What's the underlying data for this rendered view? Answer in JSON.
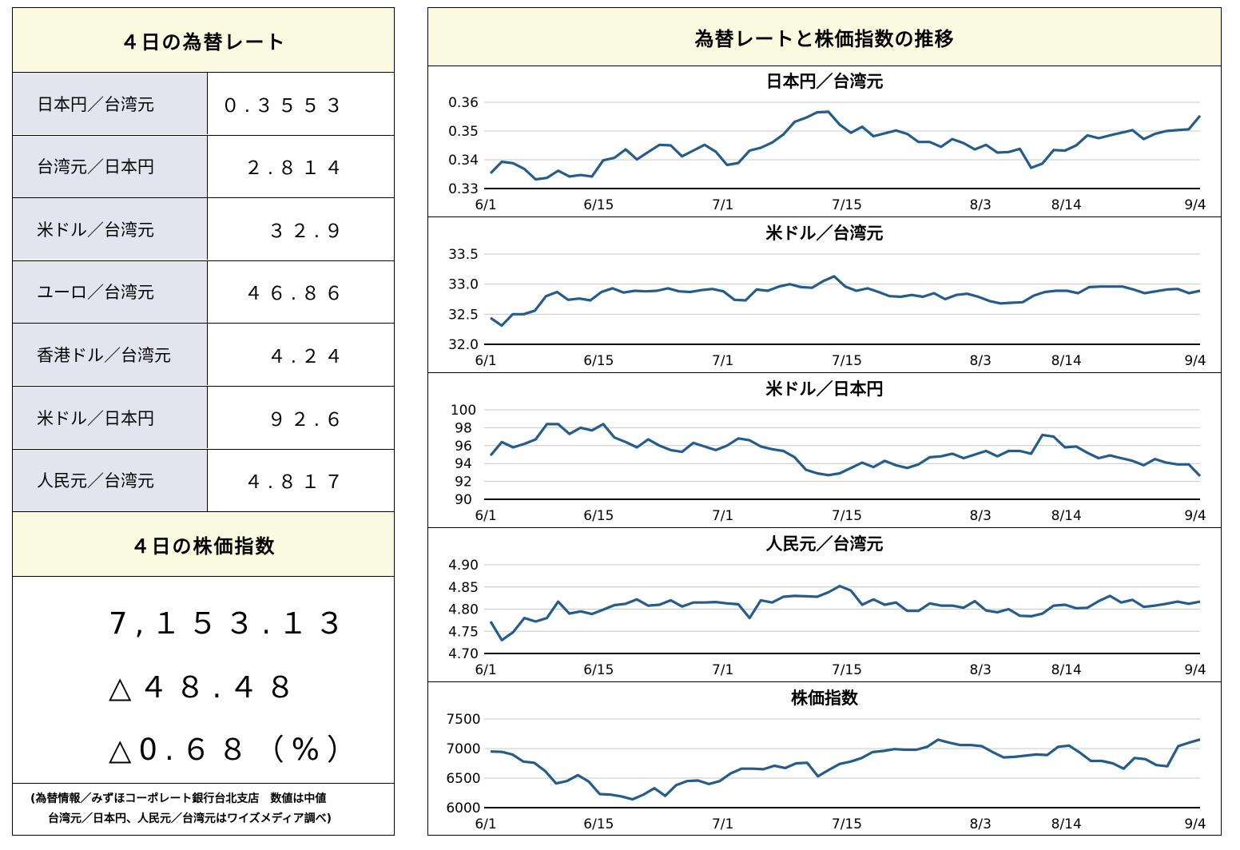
{
  "left": {
    "rates_title": "４日の為替レート",
    "rates": [
      {
        "name": "日本円／台湾元",
        "value": "０.３５５３"
      },
      {
        "name": "台湾元／日本円",
        "value": "２.８１４"
      },
      {
        "name": "米ドル／台湾元",
        "value": "３２.９"
      },
      {
        "name": "ユーロ／台湾元",
        "value": "４６.８６"
      },
      {
        "name": "香港ドル／台湾元",
        "value": "４.２４"
      },
      {
        "name": "米ドル／日本円",
        "value": "９２.６"
      },
      {
        "name": "人民元／台湾元",
        "value": "４.８１７"
      }
    ],
    "stock_title": "４日の株価指数",
    "stock_value": "7,１５３.１３",
    "stock_change": "△４８.４８",
    "stock_change_pct": "△0.６８（%）",
    "note_line1": "(為替情報／みずほコーポレート銀行台北支店　数値は中値",
    "note_line2": "台湾元／日本円、人民元／台湾元はワイズメディア調べ)"
  },
  "right": {
    "title": "為替レートと株価指数の推移"
  },
  "colors": {
    "line": "#245c8c",
    "header_bg": "#fafae0",
    "name_bg": "#e4e4ef"
  },
  "chart_data": [
    {
      "type": "line",
      "title": "日本円／台湾元",
      "xlabels": [
        "6/1",
        "6/15",
        "7/1",
        "7/15",
        "8/3",
        "8/14",
        "9/4"
      ],
      "xlabel_pos": [
        0,
        12,
        25,
        38,
        52,
        61,
        75
      ],
      "ylim": [
        0.33,
        0.36
      ],
      "yticks": [
        "0.36",
        "0.35",
        "0.34",
        "0.33"
      ],
      "values": [
        0.3353,
        0.3393,
        0.3388,
        0.3368,
        0.3332,
        0.3337,
        0.3362,
        0.3342,
        0.3347,
        0.3342,
        0.3398,
        0.3407,
        0.3436,
        0.3401,
        0.3427,
        0.3452,
        0.345,
        0.3412,
        0.3432,
        0.3452,
        0.3428,
        0.3382,
        0.3389,
        0.3432,
        0.3442,
        0.346,
        0.3488,
        0.3532,
        0.3546,
        0.3565,
        0.3567,
        0.3522,
        0.3494,
        0.3515,
        0.3482,
        0.3492,
        0.3502,
        0.349,
        0.3462,
        0.3462,
        0.3445,
        0.3472,
        0.3458,
        0.3436,
        0.3452,
        0.3425,
        0.3427,
        0.3438,
        0.3372,
        0.3387,
        0.3434,
        0.3432,
        0.345,
        0.3485,
        0.3475,
        0.3485,
        0.3494,
        0.3503,
        0.3472,
        0.349,
        0.35,
        0.3503,
        0.3506,
        0.3553
      ]
    },
    {
      "type": "line",
      "title": "米ドル／台湾元",
      "xlabels": [
        "6/1",
        "6/15",
        "7/1",
        "7/15",
        "8/3",
        "8/14",
        "9/4"
      ],
      "xlabel_pos": [
        0,
        12,
        25,
        38,
        52,
        61,
        75
      ],
      "ylim": [
        32.0,
        33.5
      ],
      "yticks": [
        "33.5",
        "33.0",
        "32.5",
        "32.0"
      ],
      "values": [
        32.44,
        32.31,
        32.5,
        32.5,
        32.56,
        32.8,
        32.87,
        32.74,
        32.76,
        32.73,
        32.87,
        32.93,
        32.86,
        32.89,
        32.88,
        32.89,
        32.93,
        32.88,
        32.87,
        32.9,
        32.92,
        32.88,
        32.74,
        32.73,
        32.91,
        32.89,
        32.96,
        33.0,
        32.95,
        32.94,
        33.05,
        33.13,
        32.96,
        32.89,
        32.93,
        32.87,
        32.8,
        32.79,
        32.82,
        32.79,
        32.85,
        32.75,
        32.82,
        32.84,
        32.79,
        32.72,
        32.68,
        32.69,
        32.7,
        32.81,
        32.87,
        32.89,
        32.89,
        32.85,
        32.95,
        32.96,
        32.96,
        32.96,
        32.91,
        32.85,
        32.88,
        32.91,
        32.92,
        32.85,
        32.89
      ]
    },
    {
      "type": "line",
      "title": "米ドル／日本円",
      "xlabels": [
        "6/1",
        "6/15",
        "7/1",
        "7/15",
        "8/3",
        "8/14",
        "9/4"
      ],
      "xlabel_pos": [
        0,
        12,
        25,
        38,
        52,
        61,
        75
      ],
      "ylim": [
        90,
        100
      ],
      "yticks": [
        "100",
        "98",
        "96",
        "94",
        "92",
        "90"
      ],
      "values": [
        94.9,
        96.4,
        95.8,
        96.2,
        96.7,
        98.4,
        98.4,
        97.3,
        98.0,
        97.7,
        98.4,
        96.9,
        96.4,
        95.8,
        96.7,
        96.0,
        95.5,
        95.3,
        96.3,
        95.9,
        95.5,
        96.0,
        96.8,
        96.6,
        95.9,
        95.6,
        95.4,
        94.7,
        93.3,
        92.9,
        92.7,
        92.9,
        93.5,
        94.1,
        93.6,
        94.3,
        93.8,
        93.5,
        93.9,
        94.7,
        94.8,
        95.1,
        94.6,
        95.0,
        95.4,
        94.8,
        95.4,
        95.4,
        95.1,
        97.2,
        97.0,
        95.8,
        95.9,
        95.2,
        94.6,
        94.9,
        94.6,
        94.3,
        93.8,
        94.5,
        94.1,
        93.9,
        93.9,
        92.6
      ]
    },
    {
      "type": "line",
      "title": "人民元／台湾元",
      "xlabels": [
        "6/1",
        "6/15",
        "7/1",
        "7/15",
        "8/3",
        "8/14",
        "9/4"
      ],
      "xlabel_pos": [
        0,
        12,
        25,
        38,
        52,
        61,
        75
      ],
      "ylim": [
        4.7,
        4.9
      ],
      "yticks": [
        "4.90",
        "4.85",
        "4.80",
        "4.75",
        "4.70"
      ],
      "values": [
        4.772,
        4.73,
        4.748,
        4.78,
        4.772,
        4.78,
        4.817,
        4.79,
        4.795,
        4.789,
        4.799,
        4.809,
        4.812,
        4.822,
        4.808,
        4.81,
        4.82,
        4.806,
        4.815,
        4.815,
        4.816,
        4.813,
        4.811,
        4.78,
        4.82,
        4.815,
        4.828,
        4.83,
        4.829,
        4.828,
        4.838,
        4.852,
        4.842,
        4.81,
        4.822,
        4.81,
        4.815,
        4.796,
        4.796,
        4.813,
        4.808,
        4.808,
        4.803,
        4.818,
        4.797,
        4.793,
        4.8,
        4.785,
        4.784,
        4.79,
        4.808,
        4.81,
        4.802,
        4.803,
        4.818,
        4.83,
        4.815,
        4.821,
        4.805,
        4.808,
        4.812,
        4.817,
        4.812,
        4.817
      ]
    },
    {
      "type": "line",
      "title": "株価指数",
      "xlabels": [
        "6/1",
        "6/15",
        "7/1",
        "7/15",
        "8/3",
        "8/14",
        "9/4"
      ],
      "xlabel_pos": [
        0,
        12,
        25,
        38,
        52,
        61,
        75
      ],
      "ylim": [
        6000,
        7500
      ],
      "yticks": [
        "7500",
        "7000",
        "6500",
        "6000"
      ],
      "values": [
        6950,
        6945,
        6900,
        6780,
        6760,
        6620,
        6410,
        6450,
        6550,
        6440,
        6230,
        6220,
        6190,
        6140,
        6220,
        6330,
        6200,
        6380,
        6450,
        6460,
        6400,
        6450,
        6580,
        6660,
        6660,
        6650,
        6710,
        6670,
        6750,
        6760,
        6530,
        6640,
        6740,
        6780,
        6840,
        6940,
        6960,
        6990,
        6980,
        6980,
        7030,
        7150,
        7100,
        7060,
        7060,
        7040,
        6940,
        6850,
        6860,
        6880,
        6900,
        6890,
        7030,
        7050,
        6930,
        6790,
        6790,
        6750,
        6660,
        6840,
        6820,
        6720,
        6700,
        7040,
        7100,
        7153
      ]
    }
  ]
}
